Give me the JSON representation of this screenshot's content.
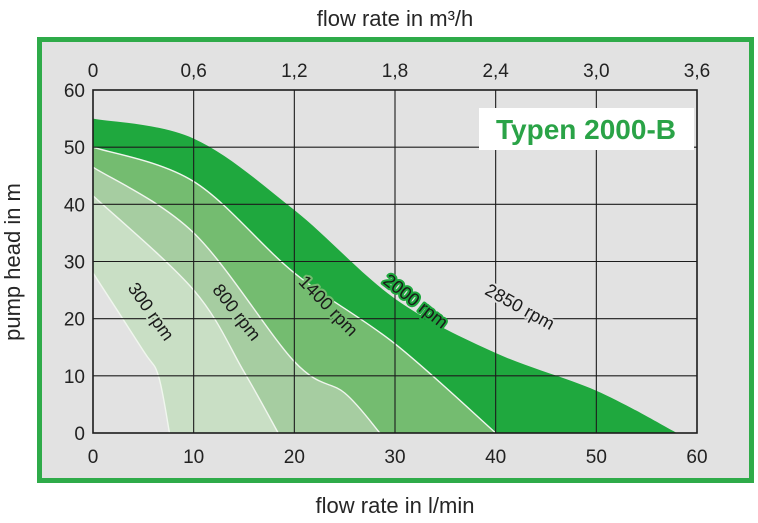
{
  "page": {
    "top_axis_title": "flow rate in m³/h",
    "bottom_axis_title": "flow rate in l/min",
    "left_axis_title": "pump head in m"
  },
  "chart_data": {
    "type": "area",
    "title": "Typen 2000-B",
    "grid": true,
    "x_axis_top": {
      "label": "flow rate in m³/h",
      "ticks": [
        "0",
        "0,6",
        "1,2",
        "1,8",
        "2,4",
        "3,0",
        "3,6"
      ],
      "tick_positions_lmin": [
        0,
        10,
        20,
        30,
        40,
        50,
        60
      ]
    },
    "x_axis_bottom": {
      "label": "flow rate in l/min",
      "ticks": [
        0,
        10,
        20,
        30,
        40,
        50,
        60
      ],
      "range": [
        0,
        60
      ]
    },
    "y_axis": {
      "label": "pump head in m",
      "ticks": [
        60,
        50,
        40,
        30,
        20,
        10,
        0
      ],
      "range": [
        0,
        60
      ]
    },
    "gridline_values": [
      10,
      20,
      30,
      40,
      50
    ],
    "series": [
      {
        "name": "2850 rpm",
        "rpm": 2850,
        "fill": "#1fa83e",
        "edge": false,
        "points": [
          [
            0,
            55
          ],
          [
            10,
            51.5
          ],
          [
            20,
            39
          ],
          [
            30,
            23.5
          ],
          [
            40,
            14
          ],
          [
            50,
            7.4
          ],
          [
            58,
            0
          ]
        ],
        "label": {
          "x": 517,
          "y": 312,
          "angle": 29,
          "halo": "#e2e2e2"
        }
      },
      {
        "name": "2000 rpm",
        "rpm": 2000,
        "fill": "#74bc70",
        "edge": true,
        "points": [
          [
            0,
            50
          ],
          [
            10,
            44
          ],
          [
            20,
            28
          ],
          [
            30,
            15.6
          ],
          [
            40,
            0
          ]
        ],
        "label": {
          "x": 412,
          "y": 306,
          "angle": 38,
          "halo": "#1fa83e"
        }
      },
      {
        "name": "1400 rpm",
        "rpm": 1400,
        "fill": "#a6cda1",
        "edge": true,
        "points": [
          [
            0,
            46.5
          ],
          [
            10,
            35
          ],
          [
            20,
            12.5
          ],
          [
            25,
            7
          ],
          [
            28.5,
            0
          ]
        ],
        "label": {
          "x": 324,
          "y": 310,
          "angle": 46,
          "halo": "#74bc70"
        }
      },
      {
        "name": "800 rpm",
        "rpm": 800,
        "fill": "#c9dfc5",
        "edge": true,
        "points": [
          [
            0,
            41.5
          ],
          [
            10,
            25
          ],
          [
            15,
            10.7
          ],
          [
            18.4,
            0
          ]
        ],
        "label": {
          "x": 232,
          "y": 316,
          "angle": 52,
          "halo": "#a6cda1"
        }
      },
      {
        "name": "300 rpm",
        "rpm": 300,
        "fill": "#e2e2e2",
        "edge": true,
        "points": [
          [
            0,
            28
          ],
          [
            5,
            14.4
          ],
          [
            6.5,
            10
          ],
          [
            7.6,
            0
          ]
        ],
        "label": {
          "x": 146,
          "y": 315,
          "angle": 55,
          "halo": "#c9dfc5"
        }
      }
    ],
    "colors": {
      "frame_green": "#2fab49",
      "background_grey": "#e2e2e2",
      "band_dark_green": "#1fa83e",
      "band_medium_green": "#74bc70",
      "band_light_green": "#a6cda1",
      "band_lightest_green": "#c9dfc5",
      "boundary_line": "#f0f6ee",
      "grid_line": "#1c1c1c",
      "title_green": "#2aa347",
      "title_box": "#ffffff"
    }
  }
}
